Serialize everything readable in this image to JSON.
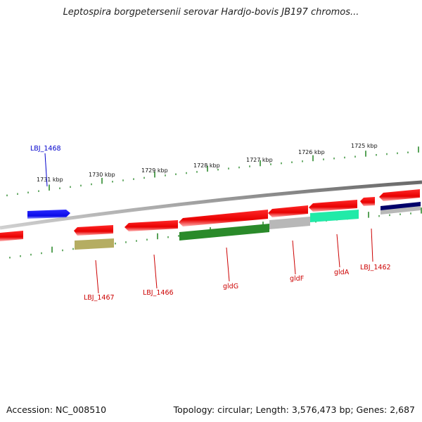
{
  "title": "Leptospira borgpetersenii serovar Hardjo-bovis JB197 chromos...",
  "footer": {
    "accession": "Accession: NC_008510",
    "summary": "Topology: circular; Length: 3,576,473 bp; Genes: 2,687"
  },
  "scale_labels": [
    "1731 kbp",
    "1730 kbp",
    "1729 kbp",
    "1728 kbp",
    "1727 kbp",
    "1726 kbp",
    "1725 kbp"
  ],
  "gene_labels": [
    {
      "id": "LBJ_1468",
      "text": "LBJ_1468",
      "color": "#0000cc"
    },
    {
      "id": "LBJ_1467",
      "text": "LBJ_1467",
      "color": "#cc0000"
    },
    {
      "id": "LBJ_1466",
      "text": "LBJ_1466",
      "color": "#cc0000"
    },
    {
      "id": "gldG",
      "text": "gldG",
      "color": "#cc0000"
    },
    {
      "id": "gldF",
      "text": "gldF",
      "color": "#cc0000"
    },
    {
      "id": "gldA",
      "text": "gldA",
      "color": "#cc0000"
    },
    {
      "id": "LBJ_1462",
      "text": "LBJ_1462",
      "color": "#cc0000"
    }
  ],
  "colors": {
    "backbone": "#8a8a8a",
    "forward_gene": "#1010e0",
    "reverse_gene": "#e00000",
    "tick": "#2e8b2e",
    "feature_green": "#2a8a2a",
    "feature_grey": "#b0b0b0",
    "feature_cyan": "#22e8a8",
    "feature_khaki": "#b0a860",
    "feature_navy": "#00006a"
  }
}
